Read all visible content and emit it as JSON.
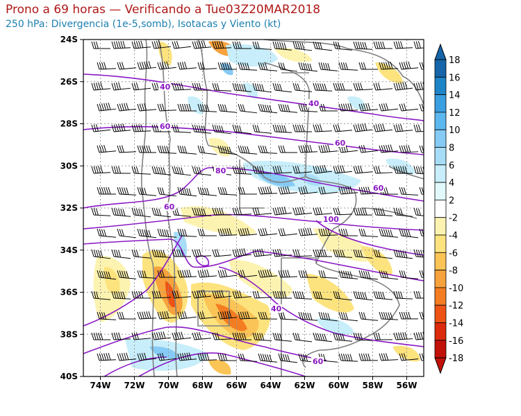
{
  "header": {
    "title": "Prono a 69 horas — Verificando a Tue03Z20MAR2018",
    "subtitle": "250 hPa: Divergencia (1e-5,somb), Isotacas y Viento (kt)"
  },
  "map": {
    "lat_labels": [
      "24S",
      "26S",
      "28S",
      "30S",
      "32S",
      "34S",
      "36S",
      "38S",
      "40S"
    ],
    "lon_labels": [
      "74W",
      "72W",
      "70W",
      "68W",
      "66W",
      "64W",
      "62W",
      "60W",
      "58W",
      "56W"
    ],
    "lon_range": [
      -75,
      -55
    ],
    "lat_range": [
      -24,
      -40
    ],
    "isotach_labels": [
      "40",
      "40",
      "60",
      "60",
      "80",
      "60",
      "60",
      "100",
      "40",
      "60"
    ]
  },
  "colorbar": {
    "labels": [
      "18",
      "16",
      "14",
      "12",
      "10",
      "8",
      "6",
      "4",
      "2",
      "-2",
      "-4",
      "-6",
      "-8",
      "-10",
      "-12",
      "-14",
      "-16",
      "-18"
    ],
    "colors": {
      "pos": [
        "#1565a8",
        "#1e84c8",
        "#3a9fe0",
        "#5cb8ef",
        "#86cbf5",
        "#a8ddf8",
        "#c7eefa",
        "#e1f9fb"
      ],
      "neutral": "#ffffff",
      "neg": [
        "#fdf3b0",
        "#fde37e",
        "#fbc457",
        "#f7a23c",
        "#f47d22",
        "#ee5314",
        "#dc2a0c",
        "#c11109"
      ]
    }
  },
  "colors": {
    "isotach": "#8a17c4",
    "border": "#808080",
    "barb": "#000000"
  }
}
